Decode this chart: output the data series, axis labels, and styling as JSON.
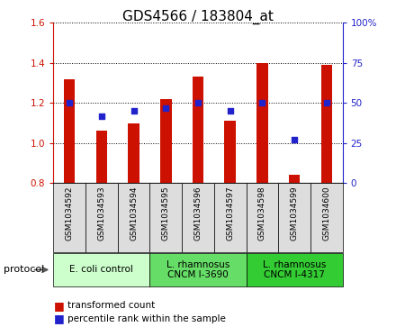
{
  "title": "GDS4566 / 183804_at",
  "samples": [
    "GSM1034592",
    "GSM1034593",
    "GSM1034594",
    "GSM1034595",
    "GSM1034596",
    "GSM1034597",
    "GSM1034598",
    "GSM1034599",
    "GSM1034600"
  ],
  "transformed_count": [
    1.32,
    1.06,
    1.1,
    1.22,
    1.33,
    1.11,
    1.4,
    0.84,
    1.39
  ],
  "percentile_rank": [
    50,
    42,
    45,
    47,
    50,
    45,
    50,
    27,
    50
  ],
  "bar_bottom": 0.8,
  "ylim_left": [
    0.8,
    1.6
  ],
  "ylim_right": [
    0,
    100
  ],
  "yticks_left": [
    0.8,
    1.0,
    1.2,
    1.4,
    1.6
  ],
  "yticks_right": [
    0,
    25,
    50,
    75,
    100
  ],
  "bar_color": "#cc1100",
  "dot_color": "#2222cc",
  "protocol_groups": [
    {
      "label": "E. coli control",
      "start": 0,
      "end": 3,
      "color": "#ccffcc"
    },
    {
      "label": "L. rhamnosus\nCNCM I-3690",
      "start": 3,
      "end": 6,
      "color": "#66dd66"
    },
    {
      "label": "L. rhamnosus\nCNCM I-4317",
      "start": 6,
      "end": 9,
      "color": "#33cc33"
    }
  ],
  "title_fontsize": 11,
  "tick_fontsize": 7.5,
  "sample_fontsize": 6.5,
  "proto_fontsize": 7.5,
  "legend_fontsize": 7.5
}
